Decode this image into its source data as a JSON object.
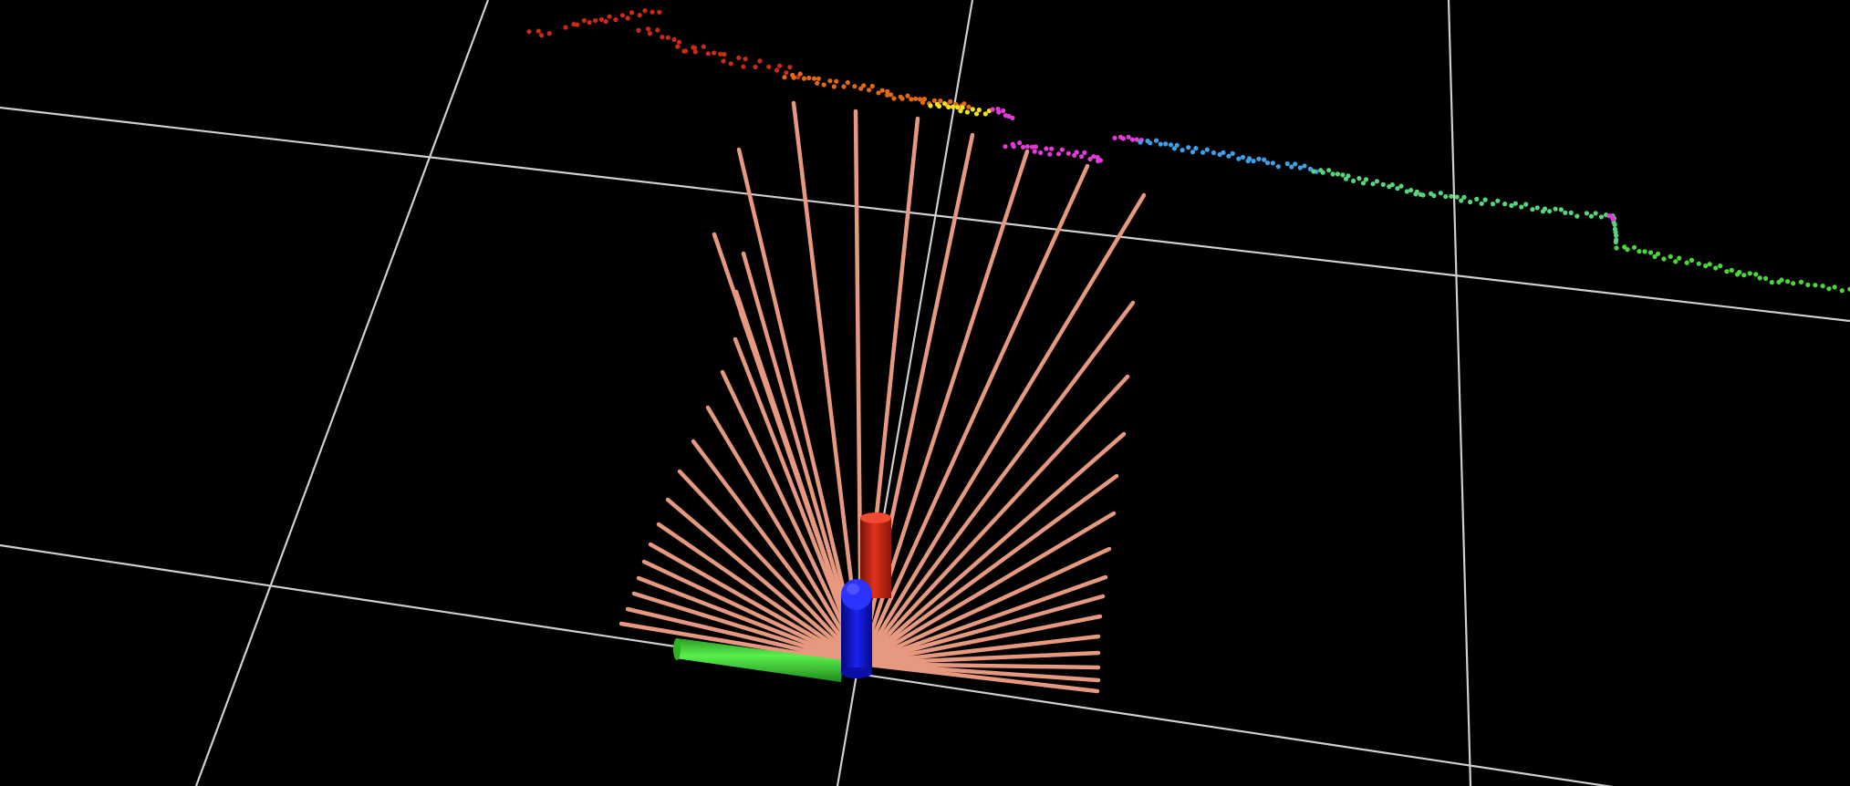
{
  "scene": {
    "background": "#000000",
    "grid_color": "#cfcfcf",
    "laser_ray_color": "#e7997f",
    "axis_x_color": "#d42a17",
    "axis_y_color": "#34e02e",
    "axis_z_color": "#0d14d6",
    "point_cloud_colormap": [
      "#cc2a14",
      "#e06a12",
      "#f2e21a",
      "#e23bd8",
      "#3ea0e8",
      "#58d47a",
      "#49d838"
    ],
    "icons": {
      "axes": "xyz-axes-icon",
      "laser_scan": "laser-scan-icon",
      "point_cloud": "point-cloud-icon",
      "grid": "grid-icon"
    }
  }
}
